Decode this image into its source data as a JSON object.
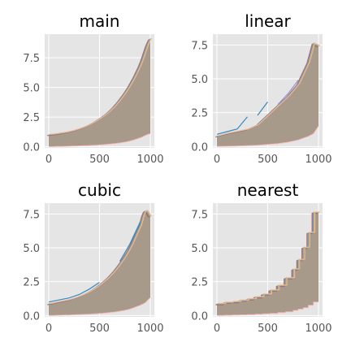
{
  "colors": {
    "background": "#ffffff",
    "axes_bg": "#e5e5e5",
    "grid": "#ffffff",
    "fill": "#a89a8a",
    "tick_text": "#555555",
    "cycle": [
      "#e24a33",
      "#348abd",
      "#988ed5",
      "#777777",
      "#fbc15e",
      "#8eba42",
      "#ffb5b8"
    ]
  },
  "chart_data": [
    {
      "type": "area",
      "title": "main",
      "interp": "smooth",
      "xlim": [
        -40,
        1040
      ],
      "ylim": [
        -0.1,
        9.5
      ],
      "xticks": [
        0,
        500,
        1000
      ],
      "xtick_labels": [
        "0",
        "500",
        "1000"
      ],
      "yticks": [
        0.0,
        2.5,
        5.0,
        7.5
      ],
      "ytick_labels": [
        "0.0",
        "2.5",
        "5.0",
        "7.5"
      ],
      "grid": true,
      "x": [
        0,
        100,
        200,
        300,
        400,
        500,
        600,
        700,
        800,
        900,
        1000
      ],
      "upper": [
        1.0,
        1.1,
        1.25,
        1.5,
        1.85,
        2.35,
        3.0,
        3.95,
        5.2,
        6.9,
        9.1
      ],
      "lower": [
        0.0,
        0.02,
        0.04,
        0.07,
        0.1,
        0.15,
        0.22,
        0.32,
        0.48,
        0.75,
        1.1
      ]
    },
    {
      "type": "area",
      "title": "linear",
      "interp": "linear",
      "xlim": [
        -40,
        1040
      ],
      "ylim": [
        -0.1,
        8.3
      ],
      "xticks": [
        0,
        500,
        1000
      ],
      "xtick_labels": [
        "0",
        "500",
        "1000"
      ],
      "yticks": [
        0.0,
        2.5,
        5.0,
        7.5
      ],
      "ytick_labels": [
        "0.0",
        "2.5",
        "5.0",
        "7.5"
      ],
      "grid": true,
      "x": [
        0,
        100,
        200,
        300,
        400,
        500,
        600,
        700,
        800,
        900,
        950,
        1000
      ],
      "upper": [
        0.75,
        0.95,
        1.1,
        1.25,
        1.6,
        2.3,
        3.0,
        3.7,
        4.6,
        6.2,
        7.6,
        7.4
      ],
      "lower": [
        0.0,
        0.02,
        0.04,
        0.07,
        0.1,
        0.15,
        0.22,
        0.32,
        0.48,
        0.75,
        0.95,
        1.5
      ],
      "outliers": [
        {
          "x": [
            0,
            100,
            200,
            300
          ],
          "y": [
            0.9,
            1.1,
            1.3,
            2.2
          ]
        },
        {
          "x": [
            400,
            500
          ],
          "y": [
            2.3,
            3.3
          ]
        },
        {
          "x": [
            600,
            700,
            800
          ],
          "y": [
            3.1,
            3.9,
            4.9
          ]
        }
      ]
    },
    {
      "type": "area",
      "title": "cubic",
      "interp": "smooth",
      "xlim": [
        -40,
        1040
      ],
      "ylim": [
        -0.1,
        8.3
      ],
      "xticks": [
        0,
        500,
        1000
      ],
      "xtick_labels": [
        "0",
        "500",
        "1000"
      ],
      "yticks": [
        0.0,
        2.5,
        5.0,
        7.5
      ],
      "ytick_labels": [
        "0.0",
        "2.5",
        "5.0",
        "7.5"
      ],
      "grid": true,
      "x": [
        0,
        100,
        200,
        300,
        400,
        500,
        600,
        700,
        800,
        900,
        950,
        1000
      ],
      "upper": [
        0.85,
        1.0,
        1.15,
        1.4,
        1.75,
        2.25,
        2.9,
        3.8,
        5.0,
        6.6,
        7.7,
        7.3
      ],
      "lower": [
        0.0,
        0.02,
        0.04,
        0.07,
        0.1,
        0.15,
        0.22,
        0.32,
        0.48,
        0.75,
        0.95,
        1.3
      ],
      "outliers": [
        {
          "x": [
            0,
            100,
            200,
            300,
            400,
            500
          ],
          "y": [
            1.0,
            1.15,
            1.3,
            1.55,
            1.95,
            2.45
          ]
        },
        {
          "x": [
            700,
            800,
            900
          ],
          "y": [
            4.0,
            5.3,
            6.9
          ]
        }
      ]
    },
    {
      "type": "area",
      "title": "nearest",
      "interp": "step",
      "xlim": [
        -40,
        1040
      ],
      "ylim": [
        -0.1,
        8.3
      ],
      "xticks": [
        0,
        500,
        1000
      ],
      "xtick_labels": [
        "0",
        "500",
        "1000"
      ],
      "yticks": [
        0.0,
        2.5,
        5.0,
        7.5
      ],
      "ytick_labels": [
        "0.0",
        "2.5",
        "5.0",
        "7.5"
      ],
      "grid": true,
      "x": [
        0,
        75,
        150,
        225,
        300,
        375,
        450,
        525,
        600,
        675,
        750,
        800,
        850,
        900,
        950,
        1000
      ],
      "upper": [
        0.85,
        0.95,
        1.0,
        1.1,
        1.2,
        1.35,
        1.55,
        1.85,
        2.2,
        2.75,
        3.4,
        4.1,
        5.0,
        6.1,
        7.6,
        7.6
      ],
      "lower": [
        0.0,
        0.02,
        0.03,
        0.05,
        0.07,
        0.09,
        0.12,
        0.16,
        0.21,
        0.28,
        0.38,
        0.47,
        0.58,
        0.75,
        1.0,
        1.0
      ]
    }
  ]
}
